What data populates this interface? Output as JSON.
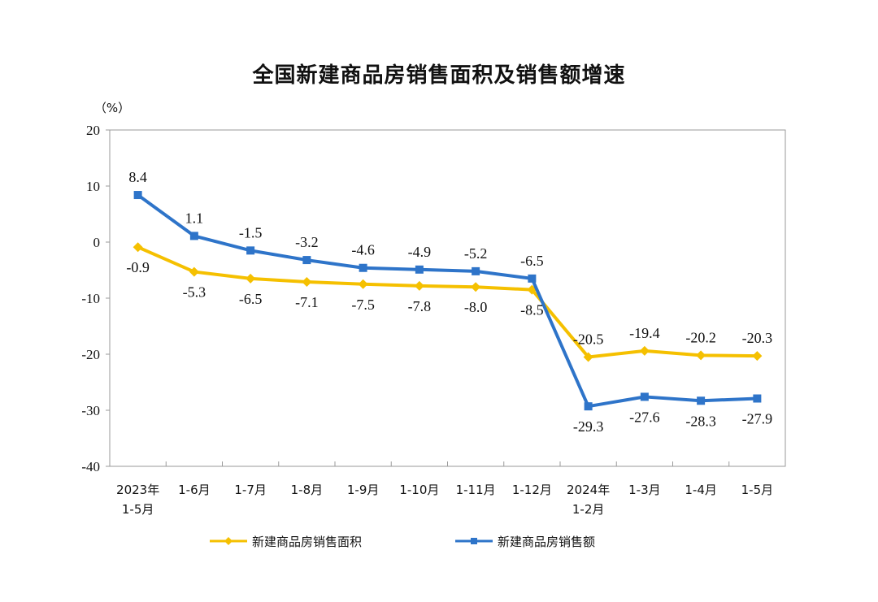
{
  "chart_data": {
    "type": "line",
    "title": "全国新建商品房销售面积及销售额增速",
    "unit_label": "（%）",
    "ylim": [
      -40,
      20
    ],
    "yticks": [
      20,
      10,
      0,
      -10,
      -20,
      -30,
      -40
    ],
    "grid": false,
    "legend_position": "bottom",
    "categories": [
      [
        "2023年",
        "1-5月"
      ],
      [
        "1-6月"
      ],
      [
        "1-7月"
      ],
      [
        "1-8月"
      ],
      [
        "1-9月"
      ],
      [
        "1-10月"
      ],
      [
        "1-11月"
      ],
      [
        "1-12月"
      ],
      [
        "2024年",
        "1-2月"
      ],
      [
        "1-3月"
      ],
      [
        "1-4月"
      ],
      [
        "1-5月"
      ]
    ],
    "series": [
      {
        "name": "新建商品房销售面积",
        "color": "#F5C000",
        "marker": "diamond",
        "values": [
          -0.9,
          -5.3,
          -6.5,
          -7.1,
          -7.5,
          -7.8,
          -8.0,
          -8.5,
          -20.5,
          -19.4,
          -20.2,
          -20.3
        ],
        "labels": [
          "-0.9",
          "-5.3",
          "-6.5",
          "-7.1",
          "-7.5",
          "-7.8",
          "-8.0",
          "-8.5",
          "-20.5",
          "-19.4",
          "-20.2",
          "-20.3"
        ],
        "label_side": [
          "below",
          "below",
          "below",
          "below",
          "below",
          "below",
          "below",
          "below",
          "above",
          "above",
          "above",
          "above"
        ]
      },
      {
        "name": "新建商品房销售额",
        "color": "#2E74C9",
        "marker": "square",
        "values": [
          8.4,
          1.1,
          -1.5,
          -3.2,
          -4.6,
          -4.9,
          -5.2,
          -6.5,
          -29.3,
          -27.6,
          -28.3,
          -27.9
        ],
        "labels": [
          "8.4",
          "1.1",
          "-1.5",
          "-3.2",
          "-4.6",
          "-4.9",
          "-5.2",
          "-6.5",
          "-29.3",
          "-27.6",
          "-28.3",
          "-27.9"
        ],
        "label_side": [
          "above",
          "above",
          "above",
          "above",
          "above",
          "above",
          "above",
          "above",
          "below",
          "below",
          "below",
          "below"
        ]
      }
    ]
  }
}
